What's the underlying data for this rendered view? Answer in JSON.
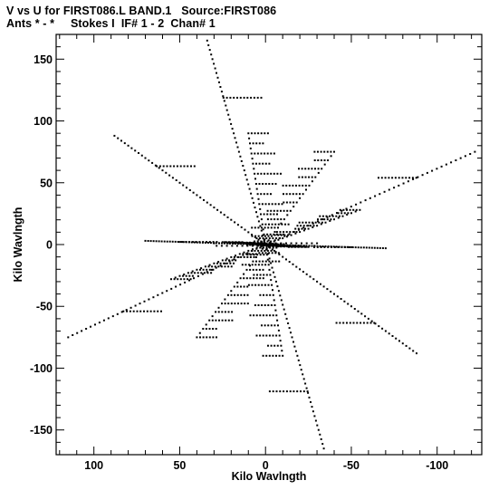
{
  "header": {
    "title_line1": "V vs U for FIRST086.L BAND.1   Source:FIRST086",
    "title_line2": "Ants * - *     Stokes I  IF# 1 - 2  Chan# 1"
  },
  "chart_data": {
    "type": "scatter",
    "title": "V vs U for FIRST086.L BAND.1   Source:FIRST086",
    "subtitle": "Ants * - *     Stokes I  IF# 1 - 2  Chan# 1",
    "xlabel": "Kilo Wavlngth",
    "ylabel": "Kilo Wavlngth",
    "xlim": [
      122,
      -126
    ],
    "ylim": [
      -170,
      170
    ],
    "xticks": [
      100,
      50,
      0,
      -50,
      -100
    ],
    "yticks": [
      150,
      100,
      50,
      0,
      -50,
      -100,
      -150
    ],
    "grid": false,
    "legend": "none",
    "marker_color": "#000000",
    "uv_arms": [
      {
        "u": 34,
        "v": 165
      },
      {
        "u": 88,
        "v": 88
      },
      {
        "u": -122,
        "v": 75
      },
      {
        "u": 70,
        "v": 3
      },
      {
        "u": -70,
        "v": -3
      },
      {
        "u": 115,
        "v": -75
      },
      {
        "u": -88,
        "v": -88
      },
      {
        "u": -34,
        "v": -165
      }
    ],
    "inner_arms": [
      {
        "u": 10,
        "v": 90
      },
      {
        "u": -10,
        "v": -90
      },
      {
        "u": -40,
        "v": 75
      },
      {
        "u": 40,
        "v": -75
      },
      {
        "u": 25,
        "v": 2
      },
      {
        "u": -25,
        "v": -2
      },
      {
        "u": 55,
        "v": -28
      },
      {
        "u": -55,
        "v": 28
      }
    ]
  }
}
